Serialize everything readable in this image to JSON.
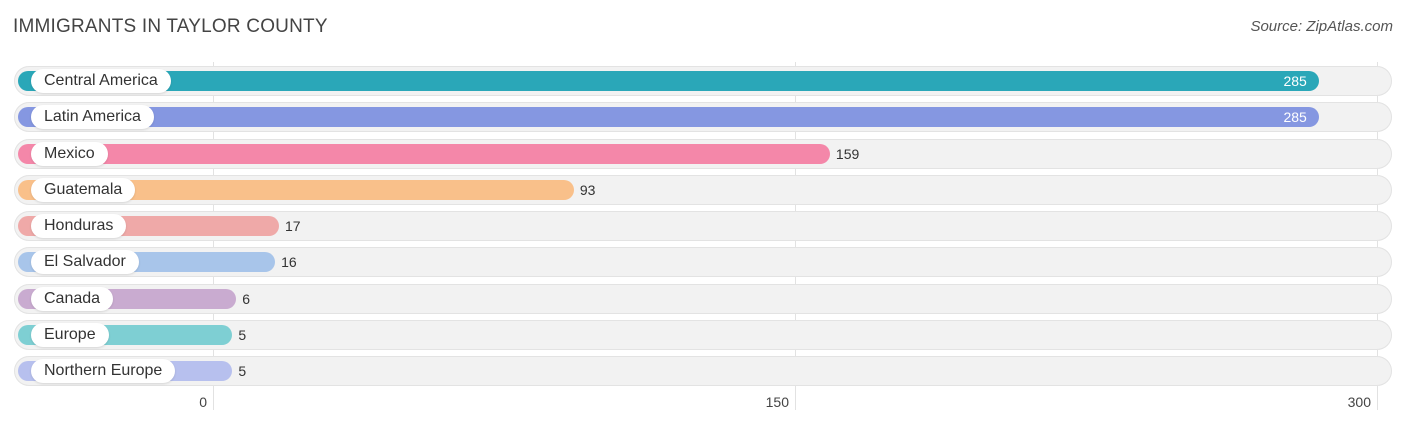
{
  "chart_data": {
    "type": "bar",
    "orientation": "horizontal",
    "title": "IMMIGRANTS IN TAYLOR COUNTY",
    "source": "Source: ZipAtlas.com",
    "categories": [
      "Central America",
      "Latin America",
      "Mexico",
      "Guatemala",
      "Honduras",
      "El Salvador",
      "Canada",
      "Europe",
      "Northern Europe"
    ],
    "values": [
      285,
      285,
      159,
      93,
      17,
      16,
      6,
      5,
      5
    ],
    "value_labels": [
      "285",
      "285",
      "159",
      "93",
      "17",
      "16",
      "6",
      "5",
      "5"
    ],
    "colors": [
      "#2aa7b8",
      "#8597e1",
      "#f487a9",
      "#f9c08a",
      "#efa9a8",
      "#a8c5ea",
      "#c9abd0",
      "#7ecfd3",
      "#b7c0ee"
    ],
    "xlim": [
      0,
      300
    ],
    "xticks": [
      0,
      150,
      300
    ],
    "xtick_labels": [
      "0",
      "150",
      "300"
    ],
    "grid": true
  }
}
